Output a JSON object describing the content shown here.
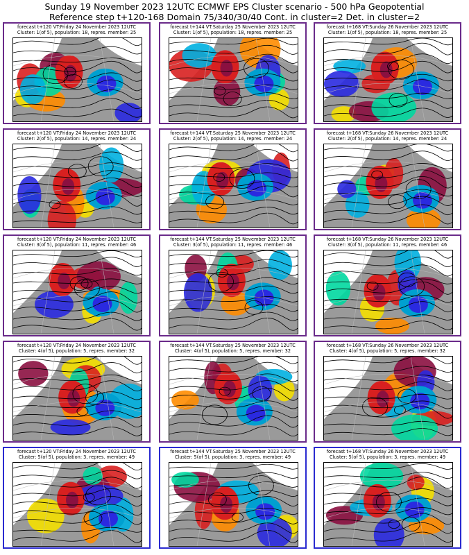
{
  "title": {
    "line1": "Sunday 19 November 2023 12UTC ECMWF EPS Cluster scenario - 500 hPa Geopotential",
    "line2": "Reference step t+120-168 Domain 75/340/30/40 Cont. in cluster=2 Det. in cluster=2"
  },
  "colors": {
    "frame_purple": "#6a2a8a",
    "frame_blue": "#2a2ad0",
    "positive_red": "#d82020",
    "negative_blue": "#2a2ae0",
    "land_gray": "#9a9a9a"
  },
  "columns": [
    "forecast t+120 VT:Friday 24 November 2023 12UTC",
    "forecast t+144 VT:Saturday 25 November 2023 12UTC",
    "forecast t+168 VT:Sunday 26 November 2023 12UTC"
  ],
  "rows": [
    {
      "cluster": "Cluster: 1(of 5), population: 18, repres. member: 25",
      "frame": "purple"
    },
    {
      "cluster": "Cluster: 2(of 5), population: 14, repres. member: 24",
      "frame": "purple"
    },
    {
      "cluster": "Cluster: 3(of 5), population: 11, repres. member: 46",
      "frame": "purple"
    },
    {
      "cluster": "Cluster: 4(of 5), population: 5, repres. member: 32",
      "frame": "purple"
    },
    {
      "cluster": "Cluster: 5(of 5), population: 3, repres. member: 49",
      "frame": "blue"
    }
  ]
}
